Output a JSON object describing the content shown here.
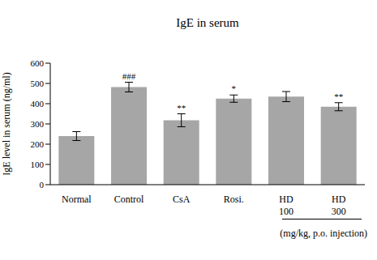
{
  "chart_data": {
    "type": "bar",
    "title": "IgE in serum",
    "y_label": "IgE level in serum (ng/ml)",
    "categories": [
      "Normal",
      "Control",
      "CsA",
      "Rosi.",
      "HD 100",
      "HD 300"
    ],
    "values": [
      240,
      482,
      318,
      425,
      435,
      385
    ],
    "errors": [
      22,
      24,
      32,
      18,
      25,
      20
    ],
    "color": "#a6a6a6",
    "ylim": [
      0,
      600
    ],
    "yticks": [
      0,
      100,
      200,
      300,
      400,
      500,
      600
    ],
    "grid": false,
    "annotations": [
      {
        "category": "Control",
        "text": "###"
      },
      {
        "category": "CsA",
        "text": "**"
      },
      {
        "category": "Rosi.",
        "text": "*"
      },
      {
        "category": "HD 300",
        "text": "**"
      }
    ],
    "note": "(mg/kg, p.o. injection)"
  }
}
